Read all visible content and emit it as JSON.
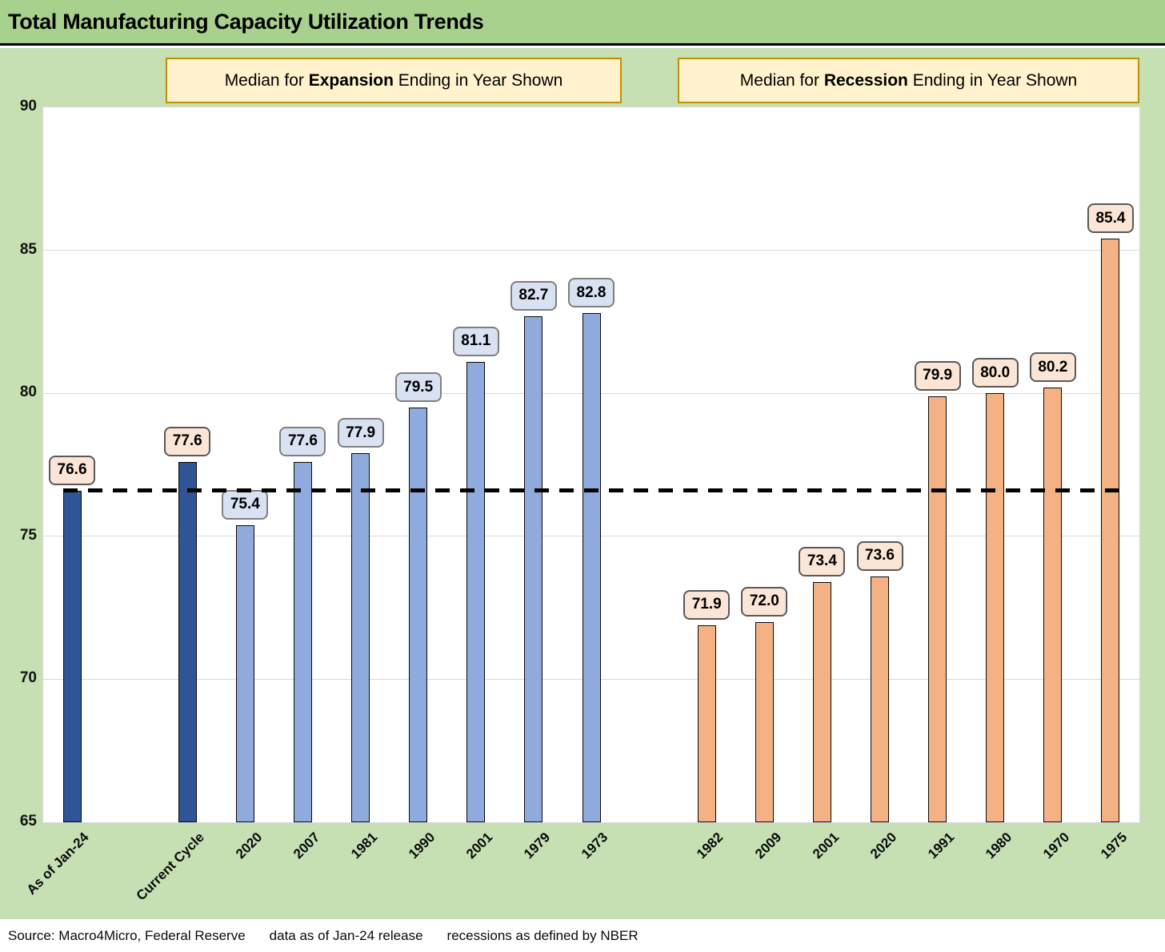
{
  "title": "Total Manufacturing Capacity Utilization Trends",
  "headers": {
    "expansion": {
      "prefix": "Median for ",
      "keyword": "Expansion",
      "suffix": " Ending in Year Shown"
    },
    "recession": {
      "prefix": "Median for ",
      "keyword": "Recession",
      "suffix": " Ending in Year Shown"
    }
  },
  "footer": {
    "segments": [
      "Source: Macro4Micro, Federal Reserve",
      "data as of Jan-24 release",
      "recessions as defined by NBER"
    ]
  },
  "colors": {
    "title_bar_green": "#A9D18E",
    "chart_background_green": "#C6E0B4",
    "plot_background": "#FFFFFF",
    "gridline": "#D9D9D9",
    "dark_blue": "#2F5597",
    "light_blue": "#8FAADC",
    "orange": "#F4B183",
    "bar_outline": "#0A0A0A",
    "peach_label_bg": "#FBE5D6",
    "peach_label_border": "#595959",
    "blue_label_bg": "#D9E2F3",
    "blue_label_border": "#7F7F7F",
    "header_box_bg": "#FFF2CC",
    "header_box_border": "#BF9000",
    "reference_line": "#000000"
  },
  "chart_data": {
    "type": "bar",
    "title": "Total Manufacturing Capacity Utilization Trends",
    "xlabel": "",
    "ylabel": "",
    "ylim": [
      65,
      90
    ],
    "yticks": [
      65,
      70,
      75,
      80,
      85,
      90
    ],
    "grid": true,
    "legend_position": "none",
    "total_slots": 19,
    "reference_line": {
      "value": 76.6,
      "style": "dashed",
      "color": "#000000"
    },
    "groups": [
      {
        "id": "expansion",
        "label": "Median for Expansion Ending in Year Shown"
      },
      {
        "id": "recession",
        "label": "Median for Recession Ending in Year Shown"
      }
    ],
    "bars": [
      {
        "category": "As of Jan-24",
        "value": 76.6,
        "slot": 0,
        "group": "expansion",
        "bar_color": "dark_blue",
        "label_style": "peach"
      },
      {
        "category": "Current Cycle",
        "value": 77.6,
        "slot": 2,
        "group": "expansion",
        "bar_color": "dark_blue",
        "label_style": "peach"
      },
      {
        "category": "2020",
        "value": 75.4,
        "slot": 3,
        "group": "expansion",
        "bar_color": "light_blue",
        "label_style": "blue"
      },
      {
        "category": "2007",
        "value": 77.6,
        "slot": 4,
        "group": "expansion",
        "bar_color": "light_blue",
        "label_style": "blue"
      },
      {
        "category": "1981",
        "value": 77.9,
        "slot": 5,
        "group": "expansion",
        "bar_color": "light_blue",
        "label_style": "blue"
      },
      {
        "category": "1990",
        "value": 79.5,
        "slot": 6,
        "group": "expansion",
        "bar_color": "light_blue",
        "label_style": "blue"
      },
      {
        "category": "2001",
        "value": 81.1,
        "slot": 7,
        "group": "expansion",
        "bar_color": "light_blue",
        "label_style": "blue"
      },
      {
        "category": "1979",
        "value": 82.7,
        "slot": 8,
        "group": "expansion",
        "bar_color": "light_blue",
        "label_style": "blue"
      },
      {
        "category": "1973",
        "value": 82.8,
        "slot": 9,
        "group": "expansion",
        "bar_color": "light_blue",
        "label_style": "blue"
      },
      {
        "category": "1982",
        "value": 71.9,
        "slot": 11,
        "group": "recession",
        "bar_color": "orange",
        "label_style": "peach"
      },
      {
        "category": "2009",
        "value": 72.0,
        "slot": 12,
        "group": "recession",
        "bar_color": "orange",
        "label_style": "peach"
      },
      {
        "category": "2001",
        "value": 73.4,
        "slot": 13,
        "group": "recession",
        "bar_color": "orange",
        "label_style": "peach"
      },
      {
        "category": "2020",
        "value": 73.6,
        "slot": 14,
        "group": "recession",
        "bar_color": "orange",
        "label_style": "peach"
      },
      {
        "category": "1991",
        "value": 79.9,
        "slot": 15,
        "group": "recession",
        "bar_color": "orange",
        "label_style": "peach"
      },
      {
        "category": "1980",
        "value": 80.0,
        "slot": 16,
        "group": "recession",
        "bar_color": "orange",
        "label_style": "peach"
      },
      {
        "category": "1970",
        "value": 80.2,
        "slot": 17,
        "group": "recession",
        "bar_color": "orange",
        "label_style": "peach"
      },
      {
        "category": "1975",
        "value": 85.4,
        "slot": 18,
        "group": "recession",
        "bar_color": "orange",
        "label_style": "peach"
      }
    ]
  }
}
